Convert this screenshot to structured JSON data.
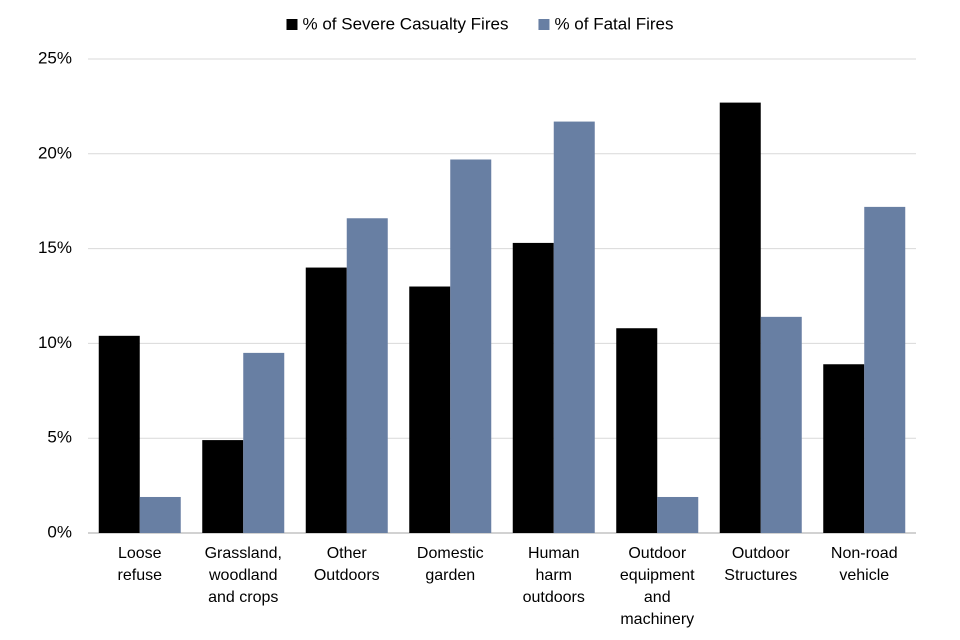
{
  "chart_data": {
    "type": "bar",
    "categories": [
      "Loose refuse",
      "Grassland, woodland and crops",
      "Other Outdoors",
      "Domestic garden",
      "Human harm outdoors",
      "Outdoor equipment and machinery",
      "Outdoor Structures",
      "Non-road vehicle"
    ],
    "series": [
      {
        "name": "% of Severe Casualty Fires",
        "color": "#000000",
        "values": [
          10.4,
          4.9,
          14.0,
          13.0,
          15.3,
          10.8,
          22.7,
          8.9
        ]
      },
      {
        "name": "% of Fatal Fires",
        "color": "#687fa3",
        "values": [
          1.9,
          9.5,
          16.6,
          19.7,
          21.7,
          1.9,
          11.4,
          17.2
        ]
      }
    ],
    "ylim": [
      0,
      25
    ],
    "yticks": [
      {
        "value": 0,
        "label": "0%"
      },
      {
        "value": 5,
        "label": "5%"
      },
      {
        "value": 10,
        "label": "10%"
      },
      {
        "value": 15,
        "label": "15%"
      },
      {
        "value": 20,
        "label": "20%"
      },
      {
        "value": 25,
        "label": "25%"
      }
    ],
    "grid": true,
    "legend": "top"
  }
}
